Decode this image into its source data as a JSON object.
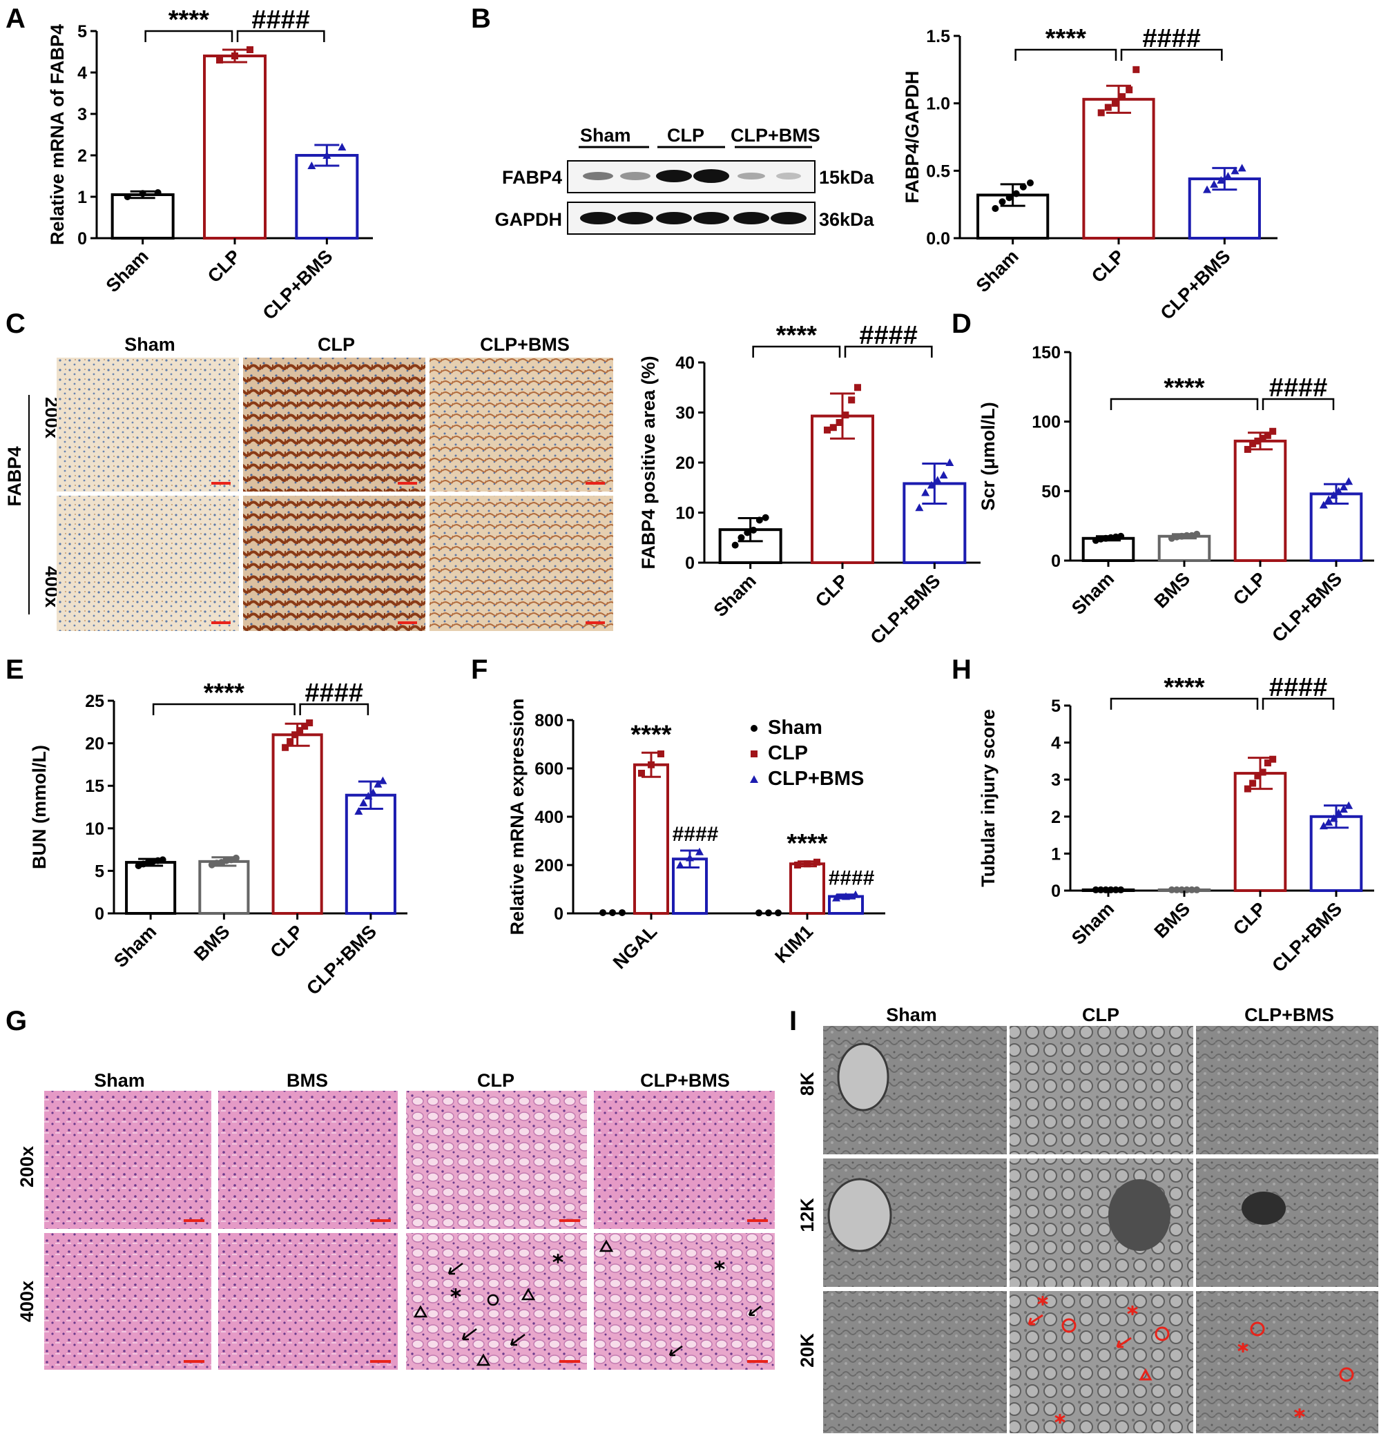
{
  "colors": {
    "sham": "#000000",
    "bms": "#666666",
    "clp": "#a01419",
    "clpbms": "#1c1cb0",
    "scale": "#e8231a"
  },
  "panel_letters": [
    "A",
    "B",
    "C",
    "D",
    "E",
    "F",
    "G",
    "H",
    "I"
  ],
  "chart_data": [
    {
      "id": "A",
      "type": "bar",
      "categories": [
        "Sham",
        "CLP",
        "CLP+BMS"
      ],
      "values": [
        1.05,
        4.4,
        2.0
      ],
      "errors": [
        0.08,
        0.15,
        0.25
      ],
      "ylabel": "Relative mRNA of FABP4",
      "ylim": [
        0,
        5
      ],
      "yticks": [
        "0",
        "1",
        "2",
        "3",
        "4",
        "5"
      ],
      "legend": "none",
      "points": [
        [
          1.0,
          1.08,
          1.1
        ],
        [
          4.3,
          4.4,
          4.55
        ],
        [
          1.75,
          2.0,
          2.2
        ]
      ],
      "significance": [
        {
          "from": 0,
          "to": 1,
          "text": "****"
        },
        {
          "from": 1,
          "to": 2,
          "text": "####"
        }
      ]
    },
    {
      "id": "B",
      "type": "bar",
      "categories": [
        "Sham",
        "CLP",
        "CLP+BMS"
      ],
      "values": [
        0.32,
        1.03,
        0.44
      ],
      "errors": [
        0.08,
        0.1,
        0.08
      ],
      "ylabel": "FABP4/GAPDH",
      "ylim": [
        0,
        1.5
      ],
      "yticks": [
        "0.0",
        "0.5",
        "1.0",
        "1.5"
      ],
      "legend": "none",
      "points": [
        [
          0.22,
          0.27,
          0.3,
          0.33,
          0.38,
          0.41
        ],
        [
          0.93,
          0.97,
          1.0,
          1.05,
          1.1,
          1.25
        ],
        [
          0.36,
          0.4,
          0.43,
          0.46,
          0.5,
          0.52
        ]
      ],
      "significance": [
        {
          "from": 0,
          "to": 1,
          "text": "****"
        },
        {
          "from": 1,
          "to": 2,
          "text": "####"
        }
      ]
    },
    {
      "id": "C",
      "type": "bar",
      "categories": [
        "Sham",
        "CLP",
        "CLP+BMS"
      ],
      "values": [
        6.6,
        29.3,
        15.8
      ],
      "errors": [
        2.3,
        4.5,
        4.0
      ],
      "ylabel": "FABP4 positive area (%)",
      "ylim": [
        0,
        40
      ],
      "yticks": [
        "0",
        "10",
        "20",
        "30",
        "40"
      ],
      "legend": "none",
      "points": [
        [
          3.5,
          5.0,
          6.0,
          6.5,
          8.5,
          9.0
        ],
        [
          26.5,
          27.0,
          28.0,
          29.5,
          32.5,
          35.0
        ],
        [
          11.0,
          14.0,
          15.5,
          16.5,
          17.5,
          20.0
        ]
      ],
      "significance": [
        {
          "from": 0,
          "to": 1,
          "text": "****"
        },
        {
          "from": 1,
          "to": 2,
          "text": "####"
        }
      ]
    },
    {
      "id": "D",
      "type": "bar",
      "categories": [
        "Sham",
        "BMS",
        "CLP",
        "CLP+BMS"
      ],
      "values": [
        16,
        17.5,
        86,
        48
      ],
      "errors": [
        1.5,
        1.5,
        6,
        7
      ],
      "ylabel": "Scr (μmol/L)",
      "ylim": [
        0,
        150
      ],
      "yticks": [
        "0",
        "50",
        "100",
        "150"
      ],
      "legend": "none",
      "points": [
        [
          14.5,
          15.5,
          16,
          16.5,
          17,
          17.5
        ],
        [
          16,
          17,
          17.5,
          18,
          18,
          19
        ],
        [
          80,
          84,
          86,
          88,
          90,
          93
        ],
        [
          40,
          44,
          47,
          50,
          53,
          57
        ]
      ],
      "significance": [
        {
          "from": 0,
          "to": 2,
          "text": "****"
        },
        {
          "from": 2,
          "to": 3,
          "text": "####"
        }
      ]
    },
    {
      "id": "E",
      "type": "bar",
      "categories": [
        "Sham",
        "BMS",
        "CLP",
        "CLP+BMS"
      ],
      "values": [
        6.0,
        6.1,
        21.0,
        13.9
      ],
      "errors": [
        0.4,
        0.5,
        1.3,
        1.6
      ],
      "ylabel": "BUN (mmol/L)",
      "ylim": [
        0,
        25
      ],
      "yticks": [
        "0",
        "5",
        "10",
        "15",
        "20",
        "25"
      ],
      "legend": "none",
      "points": [
        [
          5.6,
          5.8,
          6.0,
          6.1,
          6.2,
          6.3
        ],
        [
          5.7,
          5.9,
          6.0,
          6.2,
          6.3,
          6.5
        ],
        [
          19.5,
          20.2,
          21.0,
          21.5,
          22.0,
          22.4
        ],
        [
          12.0,
          13.0,
          13.8,
          14.2,
          15.2,
          15.6
        ]
      ],
      "significance": [
        {
          "from": 0,
          "to": 2,
          "text": "****"
        },
        {
          "from": 2,
          "to": 3,
          "text": "####"
        }
      ]
    },
    {
      "id": "F",
      "type": "bar",
      "categories": [
        "NGAL",
        "KIM1"
      ],
      "series": [
        {
          "name": "Sham",
          "values": [
            3,
            2
          ],
          "errors": [
            0,
            0
          ]
        },
        {
          "name": "CLP",
          "values": [
            615,
            205
          ],
          "errors": [
            50,
            10
          ]
        },
        {
          "name": "CLP+BMS",
          "values": [
            225,
            70
          ],
          "errors": [
            35,
            8
          ]
        }
      ],
      "ylabel": "Relative mRNA expression",
      "ylim": [
        0,
        800
      ],
      "yticks": [
        "0",
        "200",
        "400",
        "600",
        "800"
      ],
      "legend": "top-right",
      "points": [
        [
          [
            3,
            3,
            3
          ],
          [
            580,
            615,
            660
          ],
          [
            200,
            230,
            255
          ]
        ],
        [
          [
            2,
            2,
            2
          ],
          [
            200,
            205,
            212
          ],
          [
            64,
            70,
            78
          ]
        ]
      ],
      "significance": [
        {
          "group": 0,
          "series": 1,
          "text": "****"
        },
        {
          "group": 0,
          "series": 2,
          "text": "####"
        },
        {
          "group": 1,
          "series": 1,
          "text": "****"
        },
        {
          "group": 1,
          "series": 2,
          "text": "####"
        }
      ]
    },
    {
      "id": "H",
      "type": "bar",
      "categories": [
        "Sham",
        "BMS",
        "CLP",
        "CLP+BMS"
      ],
      "values": [
        0.02,
        0.02,
        3.17,
        2.0
      ],
      "errors": [
        0.02,
        0.02,
        0.42,
        0.3
      ],
      "ylabel": "Tubular injury score",
      "ylim": [
        0,
        5
      ],
      "yticks": [
        "0",
        "1",
        "2",
        "3",
        "4",
        "5"
      ],
      "legend": "none",
      "points": [
        [
          0.02,
          0.02,
          0.02,
          0.02,
          0.02,
          0.02
        ],
        [
          0.02,
          0.02,
          0.02,
          0.02,
          0.02,
          0.02
        ],
        [
          2.75,
          2.9,
          3.1,
          3.2,
          3.45,
          3.55
        ],
        [
          1.75,
          1.85,
          1.95,
          2.1,
          2.2,
          2.3
        ]
      ],
      "significance": [
        {
          "from": 0,
          "to": 2,
          "text": "****"
        },
        {
          "from": 2,
          "to": 3,
          "text": "####"
        }
      ]
    }
  ],
  "blot": {
    "groups": [
      "Sham",
      "CLP",
      "CLP+BMS"
    ],
    "rows": [
      {
        "name": "FABP4",
        "size": "15kDa"
      },
      {
        "name": "GAPDH",
        "size": "36kDa"
      }
    ]
  },
  "panelC_images": {
    "columns": [
      "Sham",
      "CLP",
      "CLP+BMS"
    ],
    "stain": "FABP4",
    "rows": [
      "200x",
      "400x"
    ]
  },
  "panelG_images": {
    "columns": [
      "Sham",
      "BMS",
      "CLP",
      "CLP+BMS"
    ],
    "rows": [
      "200x",
      "400x"
    ]
  },
  "panelI_images": {
    "columns": [
      "Sham",
      "CLP",
      "CLP+BMS"
    ],
    "rows": [
      "8K",
      "12K",
      "20K"
    ]
  }
}
